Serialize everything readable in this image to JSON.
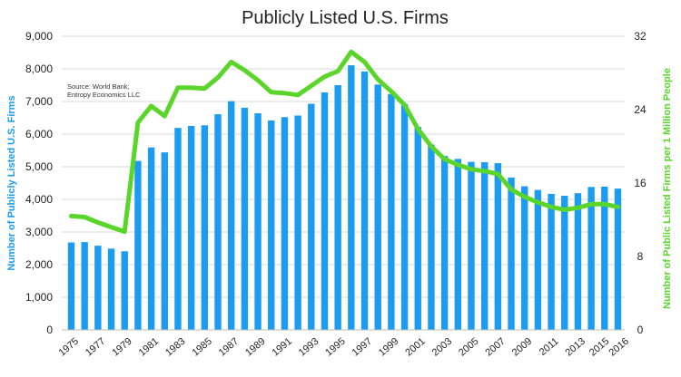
{
  "chart_data": {
    "type": "bar",
    "title": "Publicly Listed U.S. Firms",
    "source_note": [
      "Source: World Bank;",
      "Entropy Economics LLC"
    ],
    "ylabel": "Number of Publicly Listed U.S. Firms",
    "y2label": "Number of Public Listed Firms per 1 Million People",
    "ylim": [
      0,
      9000
    ],
    "y2lim": [
      0,
      32
    ],
    "yticks": [
      "0",
      "1,000",
      "2,000",
      "3,000",
      "4,000",
      "5,000",
      "6,000",
      "7,000",
      "8,000",
      "9,000"
    ],
    "y2ticks": [
      "0",
      "8",
      "16",
      "24",
      "32"
    ],
    "xtick_labels": [
      "1975",
      "1977",
      "1979",
      "1981",
      "1983",
      "1985",
      "1987",
      "1989",
      "1991",
      "1993",
      "1995",
      "1997",
      "1999",
      "2001",
      "2003",
      "2005",
      "2007",
      "2009",
      "2011",
      "2013",
      "2015",
      "2016"
    ],
    "colors": {
      "bars": "#1b9cf0",
      "line": "#5ad62b",
      "left_axis_label": "#1b9cf0",
      "right_axis_label": "#5ad62b"
    },
    "grid": true,
    "x": [
      1975,
      1976,
      1977,
      1978,
      1979,
      1980,
      1981,
      1982,
      1983,
      1984,
      1985,
      1986,
      1987,
      1988,
      1989,
      1990,
      1991,
      1992,
      1993,
      1994,
      1995,
      1996,
      1997,
      1998,
      1999,
      2000,
      2001,
      2002,
      2003,
      2004,
      2005,
      2006,
      2007,
      2008,
      2009,
      2010,
      2011,
      2012,
      2013,
      2014,
      2015,
      2016
    ],
    "series": [
      {
        "kind": "bar",
        "axis": "left",
        "values": [
          2680,
          2690,
          2580,
          2490,
          2410,
          5180,
          5590,
          5440,
          6190,
          6250,
          6270,
          6610,
          7010,
          6810,
          6640,
          6420,
          6520,
          6570,
          6930,
          7280,
          7500,
          8110,
          7920,
          7520,
          7230,
          6920,
          6220,
          5680,
          5330,
          5240,
          5150,
          5140,
          5110,
          4670,
          4400,
          4290,
          4170,
          4110,
          4190,
          4380,
          4390,
          4330
        ]
      },
      {
        "kind": "line",
        "axis": "right",
        "values": [
          12.4,
          12.3,
          11.7,
          11.2,
          10.7,
          22.6,
          24.4,
          23.3,
          26.4,
          26.4,
          26.3,
          27.5,
          29.2,
          28.3,
          27.2,
          25.9,
          25.8,
          25.6,
          26.6,
          27.6,
          28.2,
          30.3,
          29.2,
          27.3,
          26.0,
          24.5,
          21.9,
          20.0,
          18.6,
          18.0,
          17.5,
          17.3,
          17.0,
          15.3,
          14.5,
          13.9,
          13.4,
          13.1,
          13.3,
          13.7,
          13.7,
          13.4
        ]
      }
    ]
  }
}
